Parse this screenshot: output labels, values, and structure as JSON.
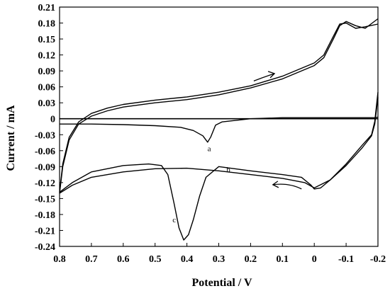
{
  "chart_data": {
    "type": "line",
    "title": "",
    "xlabel": "Potential / V",
    "ylabel": "Current / mA",
    "xlim": [
      0.8,
      -0.2
    ],
    "ylim": [
      -0.24,
      0.21
    ],
    "x_axis_reversed": true,
    "grid": false,
    "legend": "none",
    "x_ticks": [
      "0.8",
      "0.7",
      "0.6",
      "0.5",
      "0.4",
      "0.3",
      "0.2",
      "0.1",
      "0",
      "-0.1",
      "-0.2"
    ],
    "x_tick_values": [
      0.8,
      0.7,
      0.6,
      0.5,
      0.4,
      0.3,
      0.2,
      0.1,
      0,
      -0.1,
      -0.2
    ],
    "y_ticks": [
      "0.21",
      "0.18",
      "0.15",
      "0.12",
      "0.09",
      "0.06",
      "0.03",
      "0",
      "-0.03",
      "-0.06",
      "-0.09",
      "-0.12",
      "-0.15",
      "-0.18",
      "-0.21",
      "-0.24"
    ],
    "y_tick_values": [
      0.21,
      0.18,
      0.15,
      0.12,
      0.09,
      0.06,
      0.03,
      0,
      -0.03,
      -0.06,
      -0.09,
      -0.12,
      -0.15,
      -0.18,
      -0.21,
      -0.24
    ],
    "series": [
      {
        "label": "a",
        "color": "#000000",
        "points": [
          [
            0.8,
            -0.01
          ],
          [
            0.7,
            -0.01
          ],
          [
            0.6,
            -0.011
          ],
          [
            0.5,
            -0.013
          ],
          [
            0.42,
            -0.016
          ],
          [
            0.38,
            -0.022
          ],
          [
            0.35,
            -0.032
          ],
          [
            0.335,
            -0.044
          ],
          [
            0.325,
            -0.034
          ],
          [
            0.31,
            -0.012
          ],
          [
            0.29,
            -0.006
          ],
          [
            0.2,
            0.0
          ],
          [
            0.1,
            0.002
          ],
          [
            0.0,
            0.002
          ],
          [
            -0.1,
            0.002
          ],
          [
            -0.19,
            0.002
          ],
          [
            -0.2,
            0.003
          ]
        ]
      },
      {
        "label": "b",
        "color": "#000000",
        "points": [
          [
            0.8,
            -0.14
          ],
          [
            0.76,
            -0.125
          ],
          [
            0.7,
            -0.11
          ],
          [
            0.6,
            -0.1
          ],
          [
            0.5,
            -0.094
          ],
          [
            0.4,
            -0.093
          ],
          [
            0.3,
            -0.098
          ],
          [
            0.2,
            -0.105
          ],
          [
            0.1,
            -0.112
          ],
          [
            0.03,
            -0.12
          ],
          [
            0.0,
            -0.13
          ],
          [
            -0.05,
            -0.115
          ],
          [
            -0.1,
            -0.085
          ],
          [
            -0.15,
            -0.05
          ],
          [
            -0.18,
            -0.03
          ],
          [
            -0.19,
            -0.005
          ],
          [
            -0.2,
            0.05
          ]
        ]
      },
      {
        "label": "c",
        "color": "#000000",
        "points": [
          [
            0.8,
            -0.138
          ],
          [
            0.76,
            -0.12
          ],
          [
            0.7,
            -0.1
          ],
          [
            0.6,
            -0.088
          ],
          [
            0.52,
            -0.085
          ],
          [
            0.48,
            -0.088
          ],
          [
            0.46,
            -0.105
          ],
          [
            0.44,
            -0.16
          ],
          [
            0.425,
            -0.205
          ],
          [
            0.41,
            -0.228
          ],
          [
            0.395,
            -0.218
          ],
          [
            0.38,
            -0.19
          ],
          [
            0.36,
            -0.145
          ],
          [
            0.34,
            -0.11
          ],
          [
            0.3,
            -0.09
          ],
          [
            0.2,
            -0.098
          ],
          [
            0.1,
            -0.105
          ],
          [
            0.04,
            -0.11
          ],
          [
            0.01,
            -0.125
          ],
          [
            0.0,
            -0.132
          ],
          [
            -0.02,
            -0.13
          ],
          [
            -0.05,
            -0.115
          ],
          [
            -0.1,
            -0.088
          ],
          [
            -0.15,
            -0.055
          ],
          [
            -0.18,
            -0.032
          ],
          [
            -0.19,
            -0.01
          ],
          [
            -0.2,
            0.04
          ]
        ]
      },
      {
        "label": "",
        "color": "#000000",
        "points": [
          [
            0.8,
            -0.14
          ],
          [
            0.79,
            -0.09
          ],
          [
            0.77,
            -0.04
          ],
          [
            0.74,
            -0.01
          ],
          [
            0.7,
            0.005
          ],
          [
            0.65,
            0.015
          ],
          [
            0.6,
            0.022
          ],
          [
            0.5,
            0.03
          ],
          [
            0.4,
            0.036
          ],
          [
            0.3,
            0.045
          ],
          [
            0.2,
            0.058
          ],
          [
            0.1,
            0.075
          ],
          [
            0.0,
            0.1
          ],
          [
            -0.03,
            0.115
          ],
          [
            -0.06,
            0.15
          ],
          [
            -0.08,
            0.175
          ],
          [
            -0.1,
            0.183
          ],
          [
            -0.13,
            0.175
          ],
          [
            -0.16,
            0.17
          ],
          [
            -0.2,
            0.188
          ]
        ]
      },
      {
        "label": "",
        "color": "#000000",
        "points": [
          [
            0.8,
            -0.138
          ],
          [
            0.79,
            -0.085
          ],
          [
            0.77,
            -0.035
          ],
          [
            0.74,
            -0.006
          ],
          [
            0.7,
            0.01
          ],
          [
            0.65,
            0.02
          ],
          [
            0.6,
            0.027
          ],
          [
            0.5,
            0.035
          ],
          [
            0.4,
            0.041
          ],
          [
            0.3,
            0.05
          ],
          [
            0.2,
            0.062
          ],
          [
            0.1,
            0.08
          ],
          [
            0.0,
            0.105
          ],
          [
            -0.03,
            0.12
          ],
          [
            -0.06,
            0.155
          ],
          [
            -0.08,
            0.178
          ],
          [
            -0.1,
            0.18
          ],
          [
            -0.13,
            0.17
          ],
          [
            -0.16,
            0.173
          ],
          [
            -0.2,
            0.178
          ]
        ]
      }
    ],
    "annotations": [
      "a",
      "b",
      "c"
    ]
  }
}
